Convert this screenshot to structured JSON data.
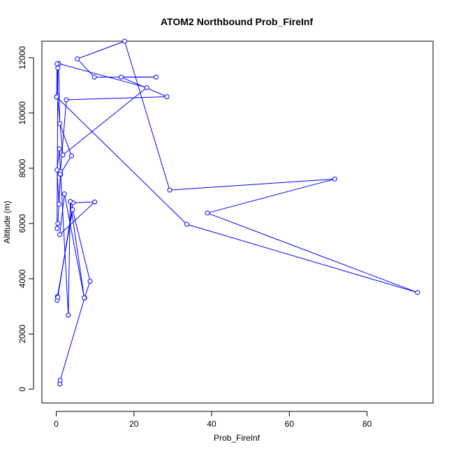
{
  "chart_data": {
    "type": "line",
    "title": "ATOM2 Northbound Prob_FireInf",
    "xlabel": "Prob_FireInf",
    "ylabel": "Altitude (m)",
    "xlim": [
      -3.7,
      97.0
    ],
    "ylim": [
      -500,
      12600
    ],
    "xticks": [
      0,
      20,
      40,
      60,
      80
    ],
    "yticks": [
      0,
      2000,
      4000,
      6000,
      8000,
      10000,
      12000
    ],
    "grid": false,
    "legend": "none",
    "style": {
      "line_color": "#0000ff",
      "marker": "open-circle"
    },
    "series": [
      {
        "x": [
          0.9,
          1.0,
          7.3,
          8.7,
          4.2,
          0.3,
          0.2,
          0.4,
          4.3,
          9.9,
          0.9,
          2.1,
          7.2,
          3.6,
          3.1,
          1.1,
          0.7,
          0.2,
          0.8,
          1.1,
          0.4,
          0.2,
          0.4,
          0.3,
          1.7,
          23.3,
          0.6,
          0.9,
          3.9,
          1.0,
          2.6,
          28.5,
          16.7,
          25.7,
          9.8,
          5.4,
          17.6,
          29.2,
          71.7,
          38.9,
          93.0,
          33.6,
          0.1,
          0.2
        ],
        "y": [
          190,
          320,
          3310,
          3910,
          6500,
          3350,
          3220,
          3330,
          6750,
          6780,
          5600,
          7070,
          3310,
          6800,
          2680,
          7880,
          6700,
          7940,
          8700,
          7780,
          6000,
          5820,
          11630,
          10620,
          8480,
          10920,
          11790,
          9620,
          8450,
          7790,
          10480,
          10590,
          11300,
          11300,
          11300,
          11960,
          12600,
          7210,
          7610,
          6380,
          3500,
          5970,
          10580,
          11780
        ]
      }
    ]
  }
}
